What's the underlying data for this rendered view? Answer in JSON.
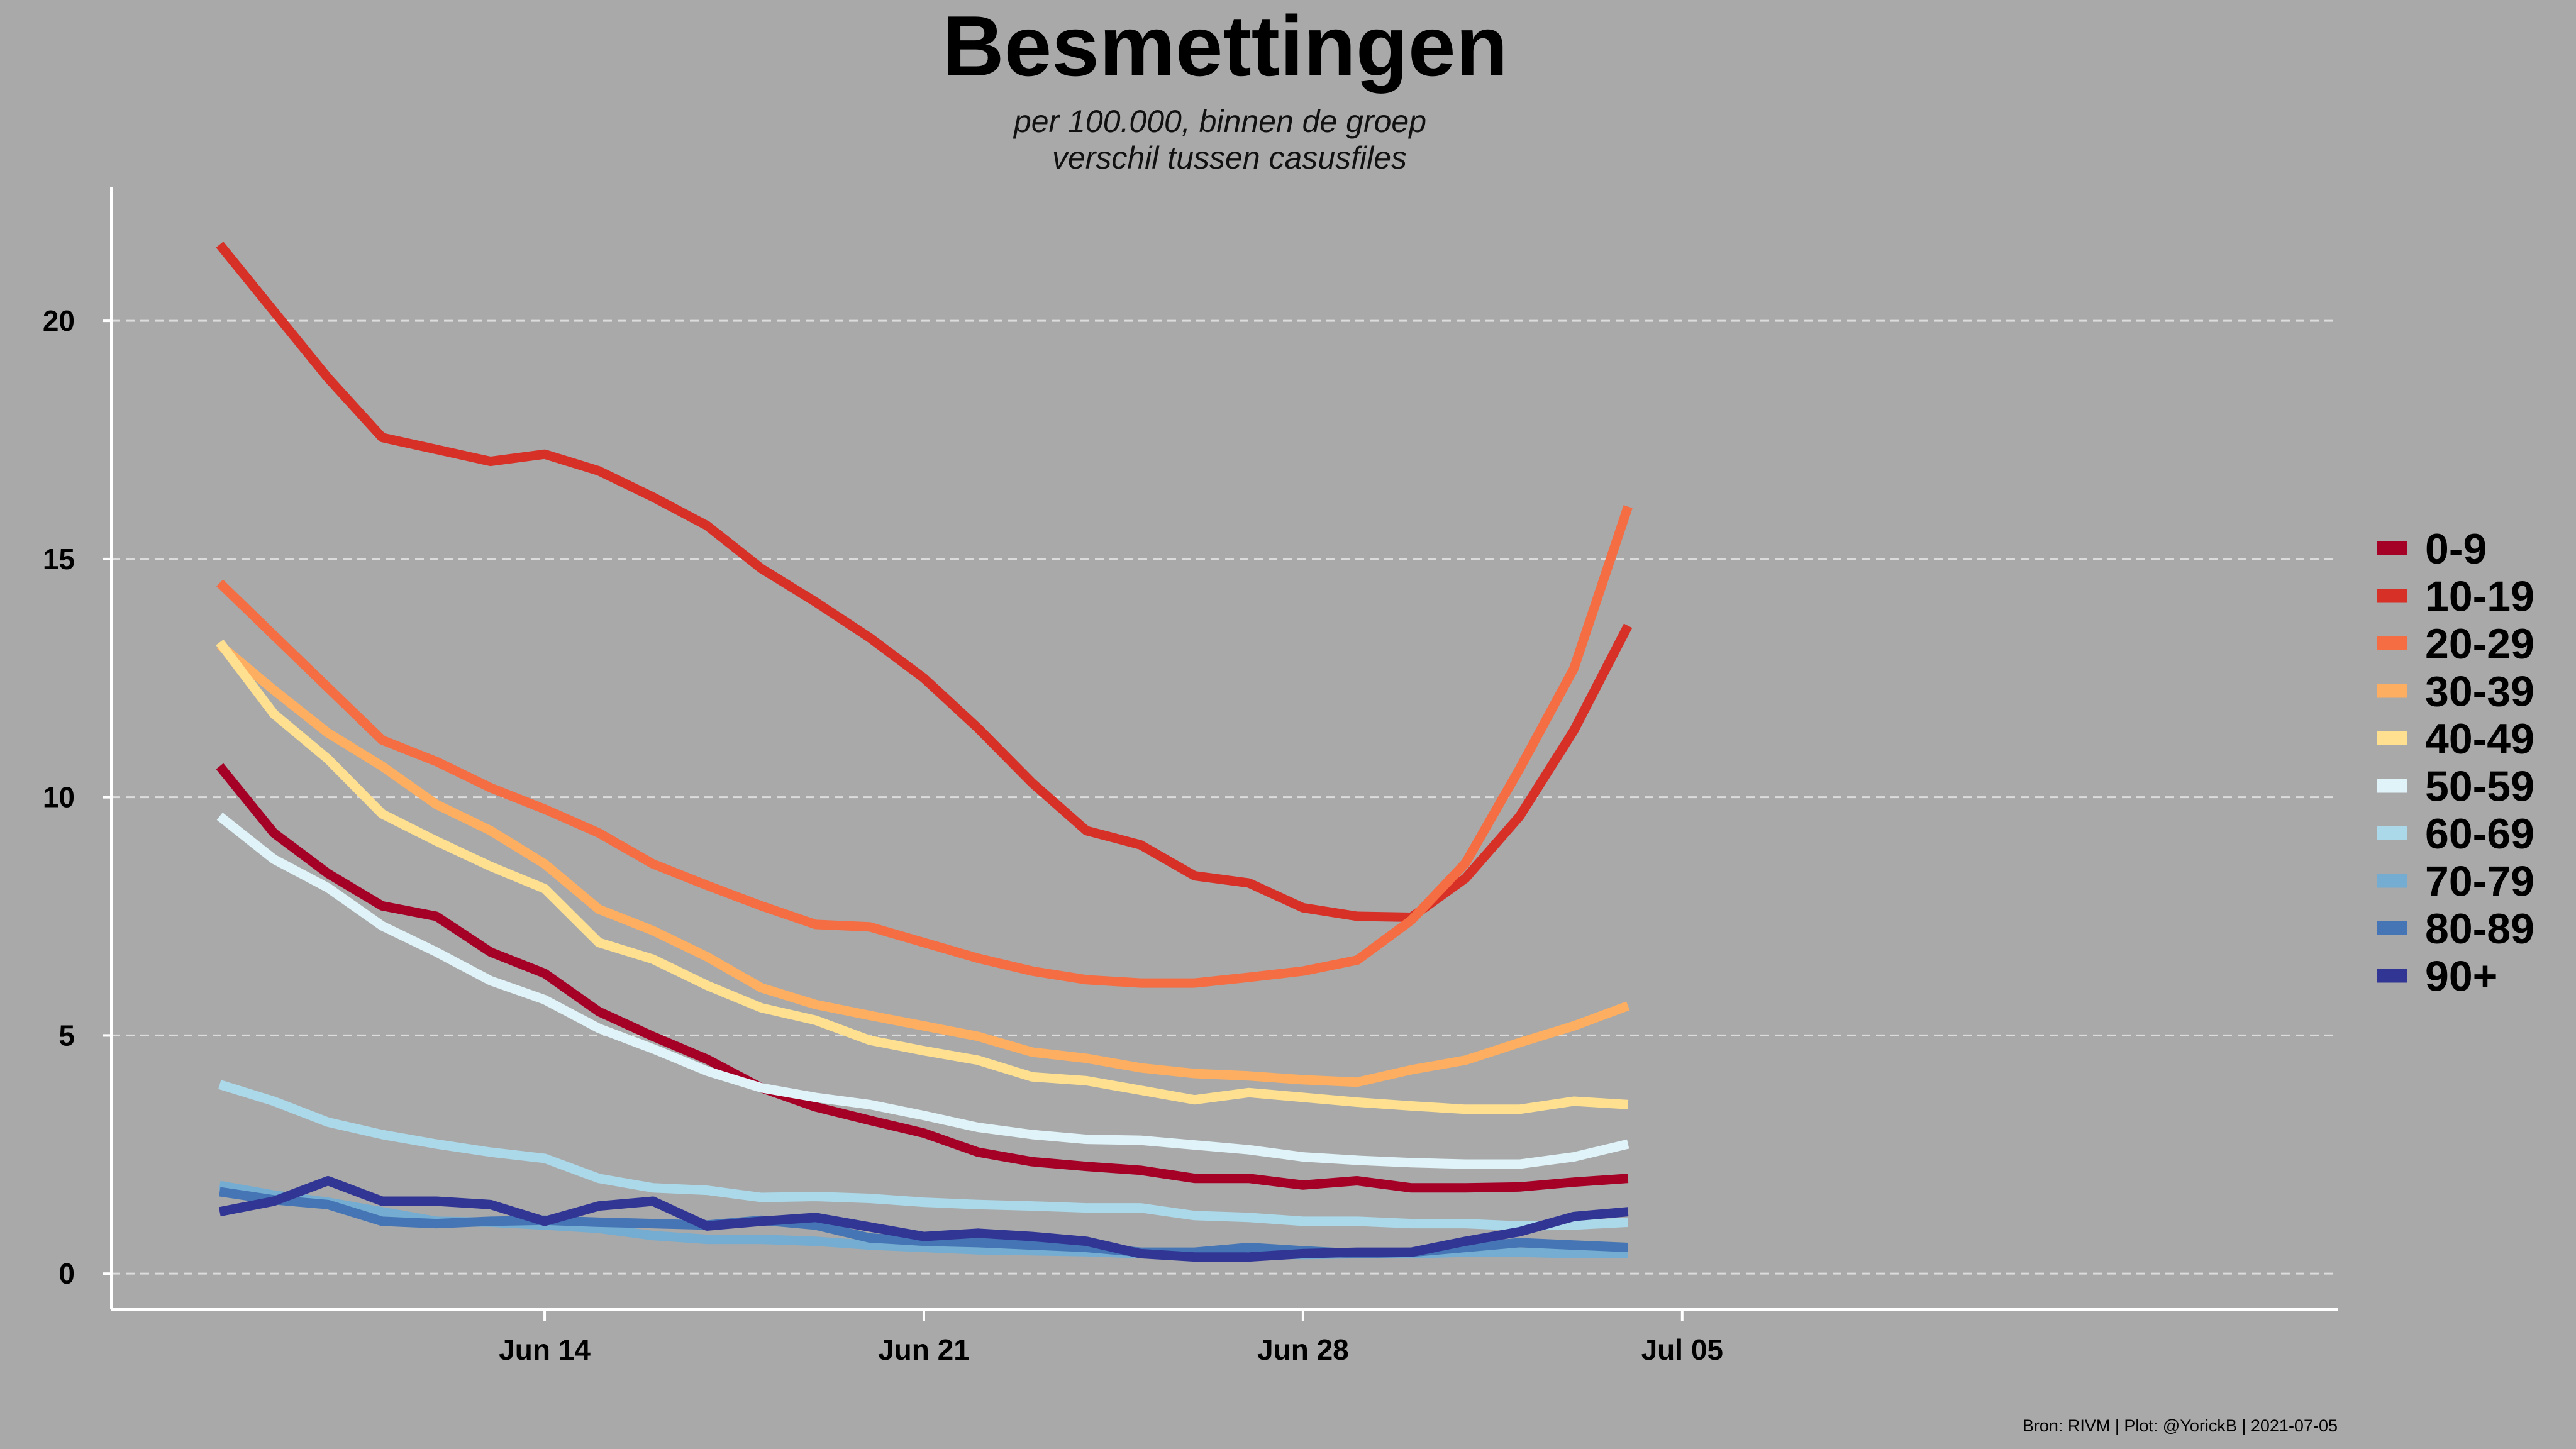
{
  "chart_data": {
    "type": "line",
    "title": "Besmettingen",
    "subtitle_lines": [
      "per 100.000, binnen de groep",
      "verschil tussen casusfiles"
    ],
    "caption": "Bron: RIVM | Plot: @YorickB  |  2021-07-05",
    "xlabel": "",
    "ylabel": "",
    "x_start": "2021-06-08",
    "x_step_days": 1,
    "xlim_days": [
      -2,
      39.1
    ],
    "ylim": [
      -0.75,
      22.8
    ],
    "yticks": [
      0,
      5,
      10,
      15,
      20
    ],
    "ytick_labels": [
      "0",
      "5",
      "10",
      "15",
      "20"
    ],
    "xticks_day_offsets": [
      6,
      13,
      20,
      27
    ],
    "xtick_labels": [
      "Jun 14",
      "Jun 21",
      "Jun 28",
      "Jul 05"
    ],
    "grid": "horizontal dashed",
    "legend_position": "right",
    "series": [
      {
        "name": "0-9",
        "color": "#a50026",
        "values": [
          10.65,
          9.25,
          8.4,
          7.72,
          7.5,
          6.75,
          6.3,
          5.5,
          4.98,
          4.5,
          3.9,
          3.5,
          3.22,
          2.95,
          2.55,
          2.35,
          2.25,
          2.17,
          2.0,
          2.0,
          1.86,
          1.95,
          1.8,
          1.8,
          1.82,
          1.92,
          2.0
        ]
      },
      {
        "name": "10-19",
        "color": "#d73027",
        "values": [
          21.6,
          20.2,
          18.8,
          17.55,
          17.3,
          17.05,
          17.2,
          16.85,
          16.3,
          15.7,
          14.8,
          14.1,
          13.35,
          12.5,
          11.45,
          10.3,
          9.3,
          9.0,
          8.35,
          8.2,
          7.68,
          7.5,
          7.48,
          8.3,
          9.6,
          11.4,
          13.6
        ]
      },
      {
        "name": "20-29",
        "color": "#f46d43",
        "values": [
          14.5,
          13.4,
          12.3,
          11.2,
          10.75,
          10.2,
          9.75,
          9.25,
          8.6,
          8.15,
          7.72,
          7.33,
          7.28,
          6.95,
          6.62,
          6.35,
          6.17,
          6.1,
          6.1,
          6.22,
          6.35,
          6.58,
          7.42,
          8.62,
          10.6,
          12.7,
          16.1
        ]
      },
      {
        "name": "30-39",
        "color": "#fdae61",
        "values": [
          13.2,
          12.25,
          11.35,
          10.65,
          9.85,
          9.3,
          8.6,
          7.65,
          7.2,
          6.65,
          6.0,
          5.65,
          5.42,
          5.2,
          4.98,
          4.65,
          4.52,
          4.32,
          4.2,
          4.15,
          4.07,
          4.02,
          4.28,
          4.48,
          4.85,
          5.2,
          5.62
        ]
      },
      {
        "name": "40-49",
        "color": "#fee090",
        "values": [
          13.25,
          11.75,
          10.8,
          9.65,
          9.08,
          8.55,
          8.08,
          6.95,
          6.6,
          6.05,
          5.58,
          5.32,
          4.9,
          4.68,
          4.48,
          4.13,
          4.05,
          3.85,
          3.65,
          3.8,
          3.7,
          3.6,
          3.52,
          3.45,
          3.45,
          3.62,
          3.55
        ]
      },
      {
        "name": "50-59",
        "color": "#e0f3f8",
        "values": [
          9.6,
          8.7,
          8.1,
          7.3,
          6.75,
          6.15,
          5.75,
          5.15,
          4.72,
          4.25,
          3.9,
          3.7,
          3.55,
          3.32,
          3.07,
          2.92,
          2.82,
          2.8,
          2.7,
          2.6,
          2.45,
          2.38,
          2.33,
          2.3,
          2.3,
          2.45,
          2.72
        ]
      },
      {
        "name": "60-69",
        "color": "#abd9e9",
        "values": [
          3.97,
          3.62,
          3.18,
          2.92,
          2.72,
          2.55,
          2.42,
          2.0,
          1.8,
          1.75,
          1.6,
          1.62,
          1.58,
          1.5,
          1.45,
          1.42,
          1.38,
          1.38,
          1.22,
          1.18,
          1.1,
          1.1,
          1.05,
          1.05,
          1.0,
          1.02,
          1.08
        ]
      },
      {
        "name": "70-79",
        "color": "#74add1",
        "values": [
          1.85,
          1.65,
          1.5,
          1.3,
          1.1,
          1.08,
          1.02,
          0.95,
          0.8,
          0.72,
          0.72,
          0.68,
          0.6,
          0.55,
          0.5,
          0.48,
          0.46,
          0.42,
          0.4,
          0.42,
          0.4,
          0.42,
          0.42,
          0.45,
          0.45,
          0.42,
          0.42
        ]
      },
      {
        "name": "80-89",
        "color": "#4575b4",
        "values": [
          1.72,
          1.55,
          1.45,
          1.1,
          1.05,
          1.1,
          1.12,
          1.08,
          1.05,
          1.02,
          1.12,
          1.02,
          0.75,
          0.68,
          0.65,
          0.6,
          0.55,
          0.45,
          0.45,
          0.55,
          0.48,
          0.42,
          0.45,
          0.55,
          0.65,
          0.6,
          0.55
        ]
      },
      {
        "name": "90+",
        "color": "#313695",
        "values": [
          1.3,
          1.52,
          1.95,
          1.52,
          1.52,
          1.45,
          1.1,
          1.42,
          1.52,
          1.0,
          1.1,
          1.18,
          0.98,
          0.78,
          0.85,
          0.78,
          0.68,
          0.42,
          0.35,
          0.35,
          0.42,
          0.45,
          0.45,
          0.68,
          0.88,
          1.2,
          1.3
        ]
      }
    ]
  }
}
